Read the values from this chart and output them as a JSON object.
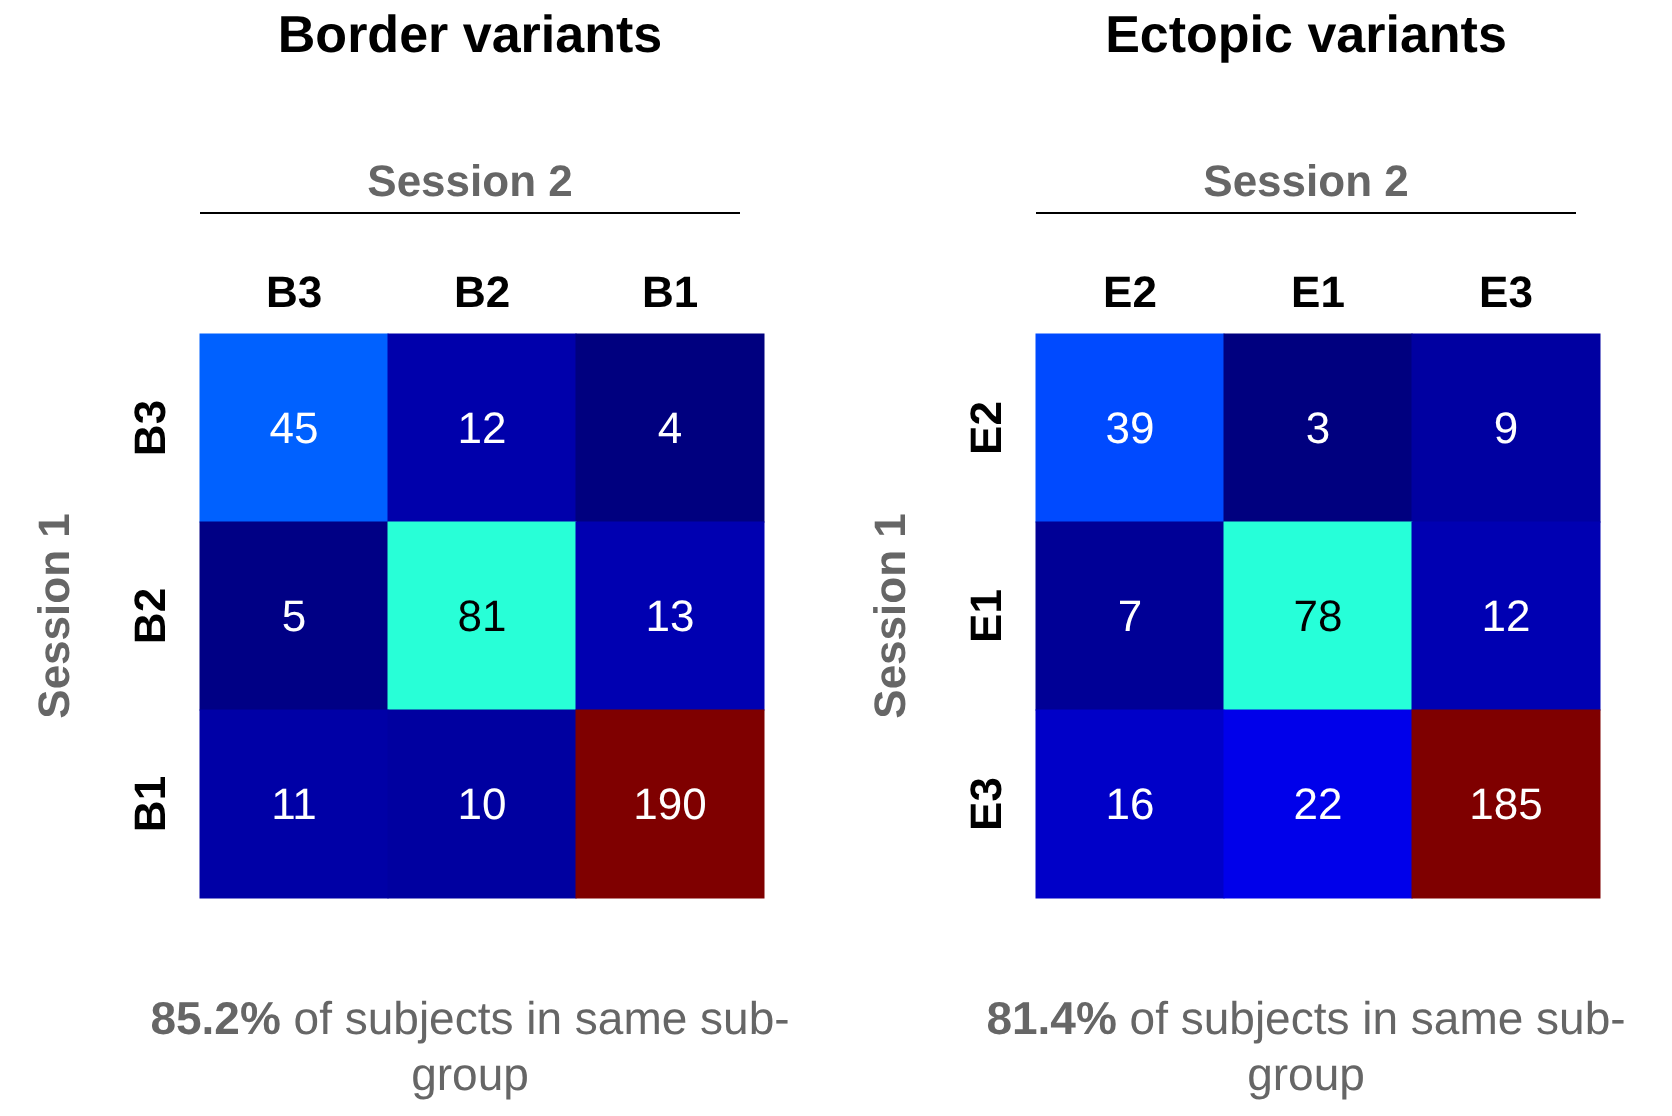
{
  "chart_data": [
    {
      "type": "heatmap",
      "title": "Border variants",
      "xlabel": "Session 2",
      "ylabel": "Session 1",
      "categories": [
        "B3",
        "B2",
        "B1"
      ],
      "y_categories": [
        "B3",
        "B2",
        "B1"
      ],
      "cells": [
        [
          45,
          12,
          4
        ],
        [
          5,
          81,
          13
        ],
        [
          11,
          10,
          190
        ]
      ],
      "data_labels": true,
      "annotations": [
        "85.2% of subjects in same sub-group"
      ]
    },
    {
      "type": "heatmap",
      "title": "Ectopic variants",
      "xlabel": "Session 2",
      "ylabel": "Session 1",
      "categories": [
        "E2",
        "E1",
        "E3"
      ],
      "y_categories": [
        "E2",
        "E1",
        "E3"
      ],
      "cells": [
        [
          39,
          3,
          9
        ],
        [
          7,
          78,
          12
        ],
        [
          16,
          22,
          185
        ]
      ],
      "data_labels": true,
      "annotations": [
        "81.4% of subjects in same sub-group"
      ]
    }
  ]
}
